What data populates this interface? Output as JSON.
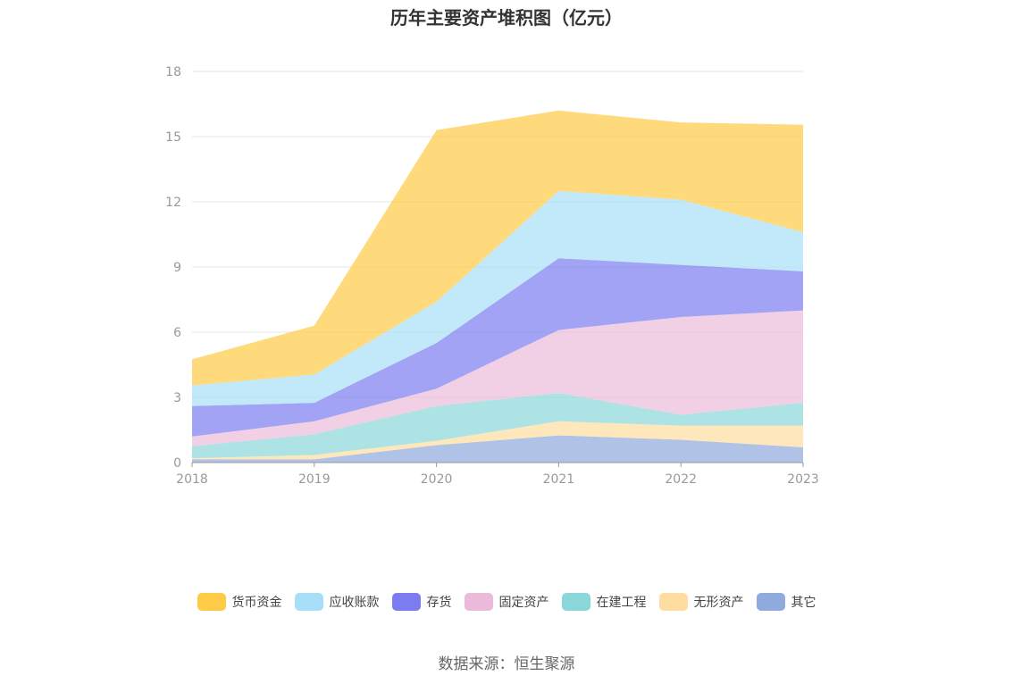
{
  "chart_data": {
    "type": "area",
    "stacked": true,
    "title": "历年主要资产堆积图（亿元）",
    "categories": [
      "2018",
      "2019",
      "2020",
      "2021",
      "2022",
      "2023"
    ],
    "ylim": [
      0,
      18
    ],
    "yticks": [
      0,
      3,
      6,
      9,
      12,
      15,
      18
    ],
    "grid": true,
    "legend_position": "bottom",
    "series": [
      {
        "name": "其它",
        "color": "#8faadc",
        "values": [
          0.15,
          0.15,
          0.8,
          1.25,
          1.05,
          0.7
        ]
      },
      {
        "name": "无形资产",
        "color": "#ffdda0",
        "values": [
          0.05,
          0.2,
          0.2,
          0.65,
          0.65,
          1.0
        ]
      },
      {
        "name": "在建工程",
        "color": "#8ad7d9",
        "values": [
          0.55,
          0.95,
          1.6,
          1.3,
          0.5,
          1.05
        ]
      },
      {
        "name": "固定资产",
        "color": "#ebbad8",
        "values": [
          0.45,
          0.6,
          0.8,
          2.9,
          4.5,
          4.25
        ]
      },
      {
        "name": "存货",
        "color": "#7b7cf0",
        "values": [
          1.4,
          0.85,
          2.1,
          3.3,
          2.4,
          1.8
        ]
      },
      {
        "name": "应收账款",
        "color": "#a7dff8",
        "values": [
          0.95,
          1.3,
          1.9,
          3.1,
          3.0,
          1.8
        ]
      },
      {
        "name": "货币资金",
        "color": "#ffca45",
        "values": [
          1.2,
          2.25,
          7.9,
          3.7,
          3.55,
          4.95
        ]
      }
    ]
  },
  "source": "数据来源：恒生聚源"
}
